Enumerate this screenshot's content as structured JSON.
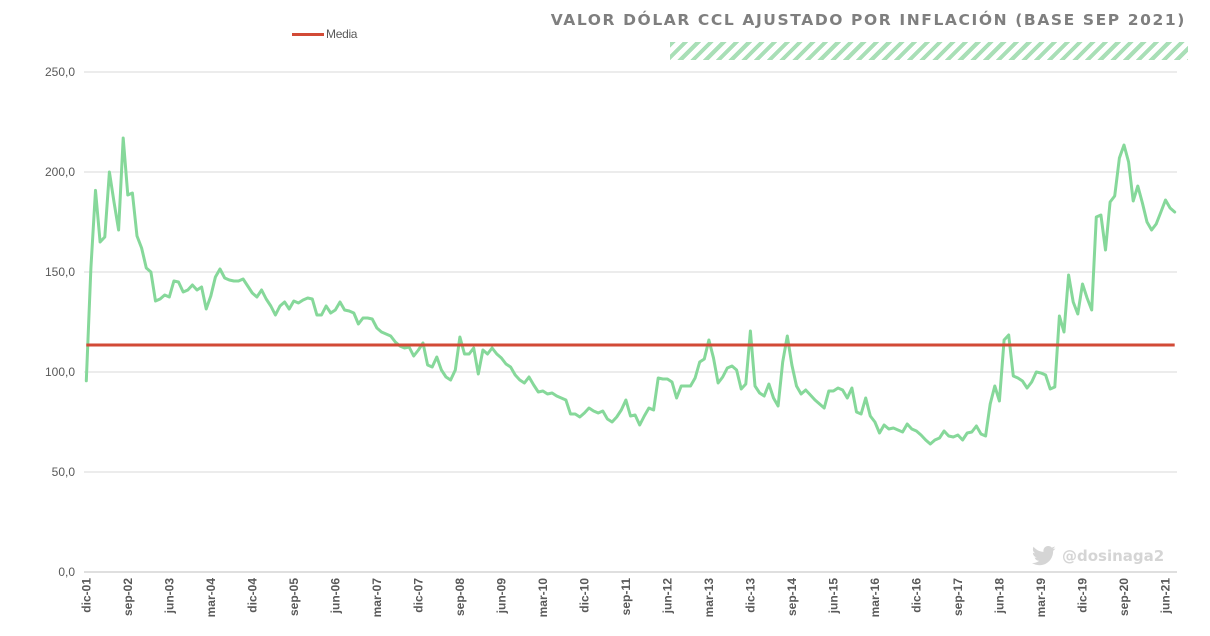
{
  "chart_data": {
    "type": "line",
    "title": "VALOR DÓLAR CCL AJUSTADO POR INFLACIÓN (BASE SEP 2021)",
    "xlabel": "",
    "ylabel": "",
    "ylim": [
      0,
      250
    ],
    "y_ticks": [
      "0,0",
      "50,0",
      "100,0",
      "150,0",
      "200,0",
      "250,0"
    ],
    "x_tick_labels": [
      "dic-01",
      "sep-02",
      "jun-03",
      "mar-04",
      "dic-04",
      "sep-05",
      "jun-06",
      "mar-07",
      "dic-07",
      "sep-08",
      "jun-09",
      "mar-10",
      "dic-10",
      "sep-11",
      "jun-12",
      "mar-13",
      "dic-13",
      "sep-14",
      "jun-15",
      "mar-16",
      "dic-16",
      "sep-17",
      "jun-18",
      "mar-19",
      "dic-19",
      "sep-20",
      "jun-21"
    ],
    "grid": true,
    "legend_position": "top-left",
    "series": [
      {
        "name": "Valor dólar CCL ajustado",
        "color": "#86d89a",
        "start": "dic-01",
        "values": [
          95.6,
          152,
          190.8,
          165,
          167.5,
          200,
          185,
          171,
          217,
          188.5,
          189.5,
          168,
          162,
          152,
          150,
          135.5,
          136.5,
          138.5,
          137.5,
          145.5,
          145,
          140,
          141,
          143.5,
          141,
          142.5,
          131.5,
          138,
          147.5,
          151.5,
          147,
          146,
          145.5,
          145.5,
          146.5,
          143,
          139.5,
          137.5,
          141,
          136.5,
          133,
          128.5,
          133,
          135,
          131.5,
          135.5,
          134.5,
          136,
          137,
          136.5,
          128.5,
          128.5,
          133,
          129.5,
          131,
          135,
          131,
          130.5,
          129.5,
          124,
          127,
          127,
          126.5,
          122,
          120,
          119,
          118,
          115,
          113,
          112,
          112.5,
          108,
          111,
          114.5,
          103.5,
          102.5,
          107.5,
          101,
          97.5,
          96,
          101,
          117.5,
          109,
          109,
          112,
          99,
          111,
          109,
          112,
          109,
          107,
          104,
          102.5,
          98.5,
          96,
          94.5,
          97.5,
          93.5,
          90,
          90.5,
          89,
          89.5,
          88,
          87,
          86,
          79,
          79,
          77.5,
          79.5,
          82,
          80.5,
          79.5,
          80.5,
          76.5,
          75,
          77.5,
          81,
          86,
          78,
          78.5,
          73.5,
          78,
          82,
          81,
          97,
          96.5,
          96.5,
          95,
          87,
          93,
          93,
          93,
          97,
          105,
          106.5,
          116,
          107,
          94.5,
          97.5,
          102,
          103,
          101,
          91.5,
          94,
          120.5,
          93,
          89.5,
          88,
          94,
          87,
          83,
          105,
          118,
          103.5,
          93,
          89,
          91,
          88.5,
          86,
          84,
          82,
          90.5,
          90.5,
          92,
          91,
          87,
          92,
          80,
          79,
          87,
          78,
          75,
          69.5,
          73.5,
          71.5,
          72,
          71,
          70,
          74,
          71.5,
          70.5,
          68.5,
          66,
          64,
          66,
          67,
          70.5,
          68,
          67.5,
          68.5,
          66,
          69.5,
          70,
          73,
          69,
          68,
          84,
          93,
          85.5,
          116,
          118.5,
          98,
          97,
          95.5,
          92,
          95,
          100,
          99.5,
          98.5,
          91.5,
          92.5,
          128,
          120,
          148.5,
          135,
          129,
          144,
          137,
          131,
          177.5,
          178.5,
          161,
          185,
          188,
          207,
          213.5,
          205,
          185.5,
          193,
          184.5,
          175,
          171,
          174,
          180,
          186,
          182,
          180
        ]
      },
      {
        "name": "Media",
        "color": "#d24a36",
        "value": 113.5
      }
    ]
  },
  "legend": {
    "media_label": "Media"
  },
  "watermark": {
    "handle": "@dosinaga2",
    "icon": "twitter-bird-icon"
  },
  "colors": {
    "hatch": "#a9dfb7",
    "grid": "#d9d9d9",
    "text": "#595959"
  }
}
